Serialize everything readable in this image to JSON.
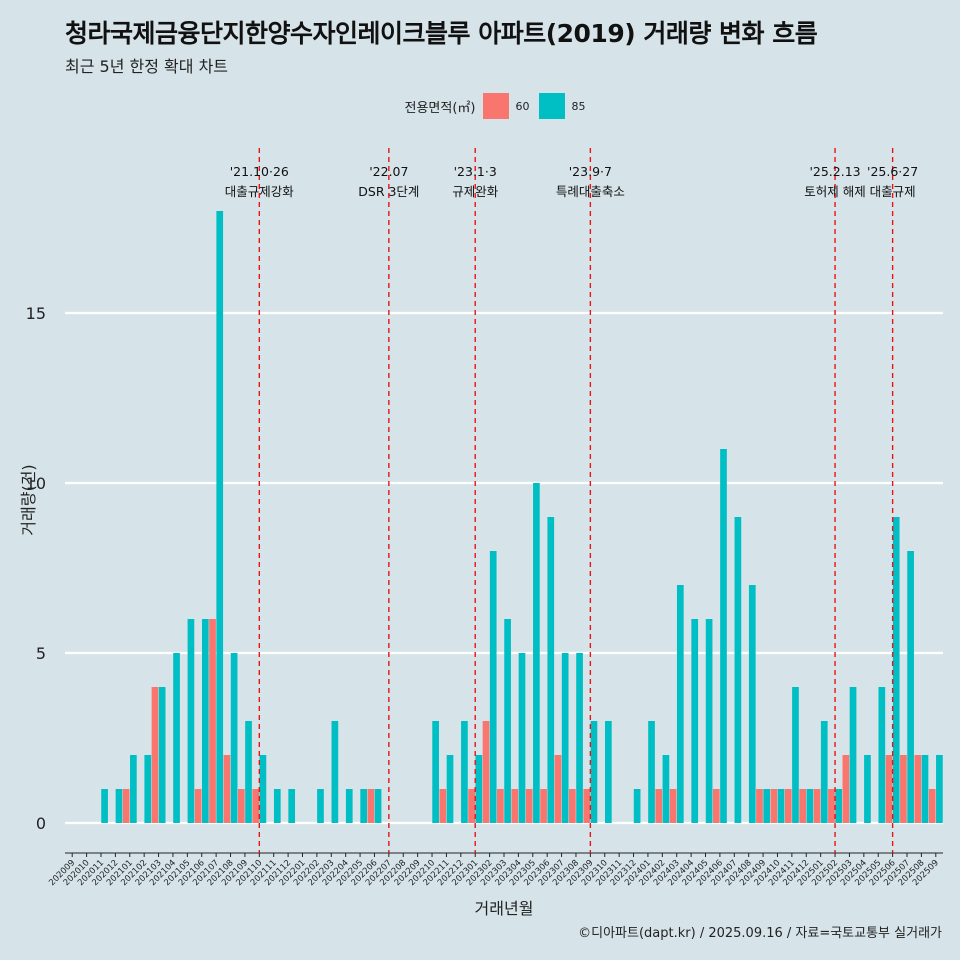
{
  "title": "청라국제금융단지한양수자인레이크블루 아파트(2019) 거래량 변화 흐름",
  "subtitle": "최근 5년 한정 확대 차트",
  "caption": "©디아파트(dapt.kr) / 2025.09.16 / 자료=국토교통부 실거래가",
  "legend": {
    "title": "전용면적(㎡)",
    "items": [
      {
        "label": "60",
        "color": "#f8766d"
      },
      {
        "label": "85",
        "color": "#00bfc4"
      }
    ]
  },
  "chart_data": {
    "type": "bar",
    "xlabel": "거래년월",
    "ylabel": "거래량(건)",
    "ylim": [
      0,
      18
    ],
    "yticks": [
      0,
      5,
      10,
      15
    ],
    "grid": true,
    "legend_position": "top",
    "categories": [
      "202009",
      "202010",
      "202011",
      "202012",
      "202101",
      "202102",
      "202103",
      "202104",
      "202105",
      "202106",
      "202107",
      "202108",
      "202109",
      "202110",
      "202111",
      "202112",
      "202201",
      "202202",
      "202203",
      "202204",
      "202205",
      "202206",
      "202207",
      "202208",
      "202209",
      "202210",
      "202211",
      "202212",
      "202301",
      "202302",
      "202303",
      "202304",
      "202305",
      "202306",
      "202307",
      "202308",
      "202309",
      "202310",
      "202311",
      "202312",
      "202401",
      "202402",
      "202403",
      "202404",
      "202405",
      "202406",
      "202407",
      "202408",
      "202409",
      "202410",
      "202411",
      "202412",
      "202501",
      "202502",
      "202503",
      "202504",
      "202505",
      "202506",
      "202507",
      "202508",
      "202509"
    ],
    "series": [
      {
        "name": "60",
        "color": "#f8766d",
        "values": [
          0,
          0,
          0,
          0,
          1,
          0,
          4,
          0,
          0,
          1,
          6,
          2,
          1,
          1,
          0,
          0,
          0,
          0,
          0,
          0,
          0,
          1,
          0,
          0,
          0,
          0,
          1,
          0,
          1,
          3,
          1,
          1,
          1,
          1,
          2,
          1,
          1,
          0,
          0,
          0,
          0,
          1,
          1,
          0,
          0,
          1,
          0,
          0,
          1,
          1,
          1,
          1,
          1,
          1,
          2,
          0,
          0,
          2,
          2,
          2,
          1
        ]
      },
      {
        "name": "85",
        "color": "#00bfc4",
        "values": [
          0,
          0,
          1,
          1,
          2,
          2,
          4,
          5,
          6,
          6,
          18,
          5,
          3,
          2,
          1,
          1,
          0,
          1,
          3,
          1,
          1,
          1,
          0,
          0,
          0,
          3,
          2,
          3,
          2,
          8,
          6,
          5,
          10,
          9,
          5,
          5,
          3,
          3,
          0,
          1,
          3,
          2,
          7,
          6,
          6,
          11,
          9,
          7,
          1,
          1,
          4,
          1,
          3,
          1,
          4,
          2,
          4,
          9,
          8,
          2,
          2
        ]
      }
    ],
    "annotations": [
      {
        "month": "202110",
        "date": "'21.10·26",
        "label": "대출규제강화"
      },
      {
        "month": "202207",
        "date": "'22.07",
        "label": "DSR 3단계"
      },
      {
        "month": "202301",
        "date": "'23.1·3",
        "label": "규제완화"
      },
      {
        "month": "202309",
        "date": "'23.9·7",
        "label": "특례대출축소"
      },
      {
        "month": "202502",
        "date": "'25.2.13",
        "label": "토허제 해제"
      },
      {
        "month": "202506",
        "date": "'25.6·27",
        "label": "대출규제"
      }
    ]
  }
}
